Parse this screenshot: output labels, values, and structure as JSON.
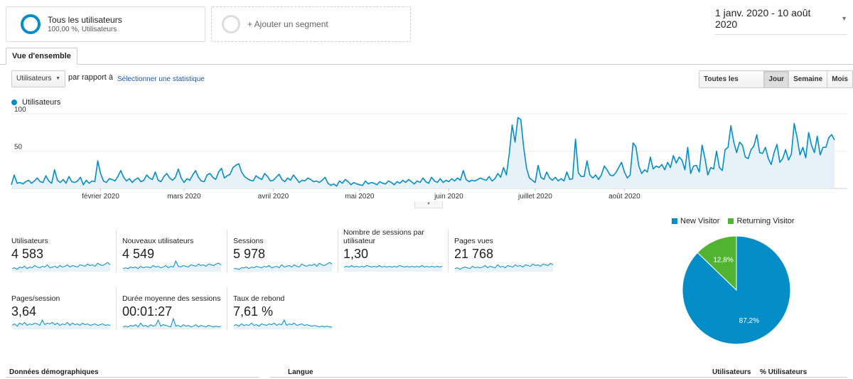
{
  "segments": {
    "active": {
      "title": "Tous les utilisateurs",
      "subtitle": "100,00 %, Utilisateurs"
    },
    "add_label": "+ Ajouter un segment"
  },
  "date_range": "1 janv. 2020 - 10 août 2020",
  "tab_label": "Vue d'ensemble",
  "controls": {
    "metric_select": "Utilisateurs",
    "vs_label": "par rapport à",
    "choose_stat": "Sélectionner une statistique",
    "granularity": [
      "Toutes les heures",
      "Jour",
      "Semaine",
      "Mois"
    ],
    "active_granularity": "Jour"
  },
  "colors": {
    "accent": "#058dc7",
    "fill": "#e6f2f8",
    "returning": "#50b432"
  },
  "chart_data": [
    {
      "type": "area",
      "series": [
        {
          "name": "Utilisateurs",
          "values": [
            5,
            18,
            7,
            8,
            6,
            9,
            11,
            7,
            10,
            14,
            9,
            8,
            17,
            10,
            7,
            25,
            11,
            8,
            12,
            7,
            16,
            9,
            8,
            10,
            15,
            5,
            11,
            7,
            10,
            9,
            37,
            20,
            10,
            8,
            13,
            12,
            10,
            16,
            24,
            15,
            10,
            13,
            8,
            12,
            14,
            9,
            11,
            18,
            14,
            12,
            22,
            11,
            9,
            16,
            20,
            14,
            11,
            15,
            26,
            14,
            8,
            13,
            11,
            18,
            24,
            15,
            10,
            9,
            18,
            20,
            15,
            12,
            22,
            27,
            14,
            17,
            19,
            28,
            31,
            33,
            22,
            16,
            13,
            11,
            10,
            17,
            14,
            12,
            20,
            16,
            10,
            11,
            15,
            19,
            12,
            9,
            14,
            11,
            18,
            13,
            8,
            11,
            10,
            14,
            12,
            9,
            10,
            8,
            11,
            15,
            7,
            4,
            6,
            3,
            10,
            7,
            12,
            9,
            5,
            8,
            6,
            5,
            4,
            10,
            6,
            8,
            7,
            5,
            9,
            7,
            6,
            10,
            8,
            5,
            9,
            7,
            11,
            8,
            12,
            9,
            6,
            10,
            8,
            14,
            9,
            7,
            15,
            10,
            8,
            13,
            8,
            11,
            9,
            13,
            10,
            14,
            11,
            24,
            12,
            9,
            11,
            10,
            12,
            14,
            12,
            11,
            16,
            10,
            13,
            20,
            15,
            28,
            18,
            47,
            85,
            62,
            95,
            92,
            55,
            27,
            14,
            11,
            8,
            31,
            15,
            12,
            22,
            14,
            11,
            15,
            10,
            13,
            10,
            22,
            12,
            13,
            66,
            21,
            16,
            16,
            37,
            18,
            14,
            18,
            12,
            18,
            30,
            25,
            18,
            17,
            21,
            28,
            35,
            22,
            14,
            18,
            61,
            56,
            30,
            20,
            25,
            22,
            42,
            26,
            30,
            28,
            32,
            25,
            35,
            28,
            44,
            34,
            42,
            38,
            25,
            55,
            20,
            30,
            31,
            22,
            58,
            40,
            18,
            28,
            26,
            50,
            28,
            24,
            52,
            55,
            84,
            62,
            48,
            62,
            58,
            42,
            40,
            52,
            57,
            72,
            48,
            47,
            55,
            40,
            32,
            48,
            59,
            35,
            40,
            52,
            38,
            46,
            87,
            68,
            45,
            55,
            41,
            75,
            58,
            48,
            70,
            45,
            55,
            55,
            68,
            72,
            65
          ]
        }
      ],
      "x_ticks": [
        "février 2020",
        "mars 2020",
        "avril 2020",
        "mai 2020",
        "juin 2020",
        "juillet 2020",
        "août 2020"
      ],
      "y_ticks": [
        50,
        100
      ],
      "ylim": [
        0,
        100
      ]
    },
    {
      "type": "pie",
      "slices": [
        {
          "label": "New Visitor",
          "value": 87.2,
          "display": "87,2%"
        },
        {
          "label": "Returning Visitor",
          "value": 12.8,
          "display": "12,8%"
        }
      ]
    }
  ],
  "scorecards": [
    {
      "label": "Utilisateurs",
      "value": "4 583",
      "spark": [
        4,
        5,
        3,
        6,
        5,
        7,
        4,
        6,
        5,
        8,
        6,
        5,
        7,
        6,
        9,
        5,
        6,
        7,
        5,
        8,
        6,
        7,
        9,
        6,
        8,
        7,
        6,
        9,
        8,
        7,
        10,
        8,
        9,
        7,
        11,
        9,
        8,
        10,
        12,
        9
      ]
    },
    {
      "label": "Nouveaux utilisateurs",
      "value": "4 549",
      "spark": [
        4,
        5,
        4,
        6,
        5,
        6,
        4,
        7,
        5,
        6,
        6,
        5,
        8,
        6,
        7,
        5,
        6,
        8,
        5,
        7,
        6,
        14,
        7,
        6,
        8,
        7,
        6,
        9,
        8,
        7,
        10,
        8,
        9,
        7,
        10,
        9,
        8,
        10,
        11,
        9
      ]
    },
    {
      "label": "Sessions",
      "value": "5 978",
      "spark": [
        4,
        4,
        3,
        5,
        5,
        6,
        4,
        6,
        5,
        7,
        6,
        5,
        7,
        6,
        8,
        5,
        6,
        7,
        5,
        9,
        6,
        7,
        8,
        6,
        9,
        7,
        6,
        10,
        8,
        7,
        9,
        8,
        10,
        7,
        11,
        9,
        8,
        10,
        12,
        10
      ]
    },
    {
      "label": "Nombre de sessions par utilisateur",
      "value": "1,30",
      "spark": [
        6,
        7,
        6,
        8,
        6,
        7,
        6,
        7,
        6,
        8,
        7,
        6,
        7,
        6,
        8,
        6,
        7,
        6,
        7,
        6,
        7,
        6,
        8,
        7,
        6,
        7,
        6,
        7,
        6,
        7,
        6,
        8,
        6,
        7,
        6,
        7,
        6,
        7,
        6,
        7
      ]
    },
    {
      "label": "Pages vues",
      "value": "21 768",
      "spark": [
        4,
        5,
        3,
        5,
        6,
        5,
        4,
        7,
        5,
        6,
        5,
        6,
        8,
        5,
        7,
        6,
        5,
        9,
        6,
        7,
        5,
        8,
        7,
        6,
        9,
        7,
        8,
        6,
        9,
        8,
        7,
        10,
        8,
        9,
        7,
        10,
        9,
        8,
        11,
        9
      ]
    },
    {
      "label": "Pages/session",
      "value": "3,64",
      "spark": [
        5,
        7,
        4,
        8,
        6,
        9,
        5,
        7,
        6,
        8,
        7,
        5,
        12,
        6,
        8,
        7,
        9,
        6,
        8,
        5,
        7,
        6,
        9,
        5,
        8,
        6,
        7,
        5,
        8,
        6,
        7,
        5,
        6,
        7,
        5,
        6,
        7,
        5,
        6,
        5
      ]
    },
    {
      "label": "Durée moyenne des sessions",
      "value": "00:01:27",
      "spark": [
        3,
        4,
        3,
        5,
        4,
        6,
        3,
        8,
        4,
        5,
        3,
        6,
        4,
        5,
        12,
        4,
        6,
        5,
        4,
        3,
        14,
        4,
        5,
        3,
        6,
        4,
        5,
        3,
        4,
        6,
        3,
        5,
        4,
        3,
        5,
        4,
        3,
        4,
        3,
        4
      ]
    },
    {
      "label": "Taux de rebond",
      "value": "7,61 %",
      "spark": [
        5,
        6,
        4,
        7,
        5,
        6,
        5,
        8,
        5,
        6,
        4,
        7,
        6,
        5,
        7,
        6,
        8,
        5,
        7,
        6,
        12,
        5,
        7,
        6,
        8,
        5,
        6,
        7,
        5,
        6,
        5,
        4,
        5,
        4,
        3,
        4,
        3,
        4,
        3,
        3
      ]
    }
  ],
  "bottom": {
    "demographics": "Données démographiques",
    "language": "Langue",
    "col_users": "Utilisateurs",
    "col_pct": "% Utilisateurs"
  }
}
